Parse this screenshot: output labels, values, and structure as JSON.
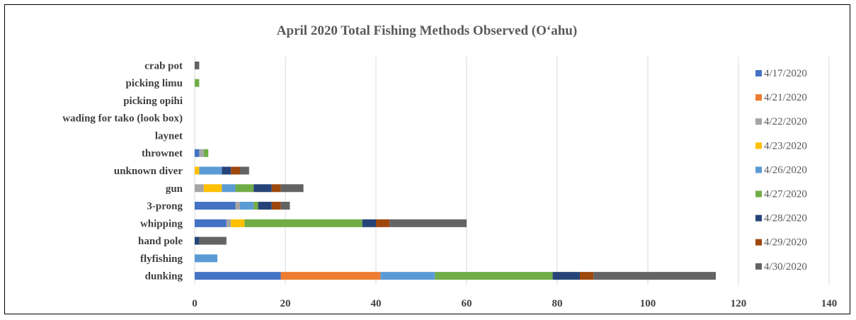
{
  "chart_data": {
    "type": "bar",
    "orientation": "horizontal",
    "stacked": true,
    "title": "April 2020 Total Fishing Methods Observed (O‘ahu)",
    "xlabel": "",
    "ylabel": "",
    "xlim": [
      0,
      140
    ],
    "xticks": [
      0,
      20,
      40,
      60,
      80,
      100,
      120,
      140
    ],
    "grid": true,
    "legend_position": "right",
    "categories": [
      "dunking",
      "flyfishing",
      "hand pole",
      "whipping",
      "3-prong",
      "gun",
      "unknown diver",
      "thrownet",
      "laynet",
      "wading for tako (look box)",
      "picking opihi",
      "picking limu",
      "crab pot"
    ],
    "series": [
      {
        "name": "4/17/2020",
        "color": "#4472C4",
        "values": [
          19,
          0,
          0,
          7,
          9,
          0,
          0,
          1,
          0,
          0,
          0,
          0,
          0
        ]
      },
      {
        "name": "4/21/2020",
        "color": "#ED7D31",
        "values": [
          22,
          0,
          0,
          0,
          0,
          0,
          0,
          0,
          0,
          0,
          0,
          0,
          0
        ]
      },
      {
        "name": "4/22/2020",
        "color": "#A5A5A5",
        "values": [
          0,
          0,
          0,
          1,
          1,
          2,
          0,
          1,
          0,
          0,
          0,
          0,
          0
        ]
      },
      {
        "name": "4/23/2020",
        "color": "#FFC000",
        "values": [
          0,
          0,
          0,
          3,
          0,
          4,
          1,
          0,
          0,
          0,
          0,
          0,
          0
        ]
      },
      {
        "name": "4/26/2020",
        "color": "#5B9BD5",
        "values": [
          12,
          5,
          0,
          0,
          3,
          3,
          5,
          0,
          0,
          0,
          0,
          0,
          0
        ]
      },
      {
        "name": "4/27/2020",
        "color": "#70AD47",
        "values": [
          26,
          0,
          0,
          26,
          1,
          4,
          0,
          1,
          0,
          0,
          0,
          1,
          0
        ]
      },
      {
        "name": "4/28/2020",
        "color": "#264478",
        "values": [
          6,
          0,
          1,
          3,
          3,
          4,
          2,
          0,
          0,
          0,
          0,
          0,
          0
        ]
      },
      {
        "name": "4/29/2020",
        "color": "#9E480E",
        "values": [
          3,
          0,
          0,
          3,
          2,
          2,
          2,
          0,
          0,
          0,
          0,
          0,
          0
        ]
      },
      {
        "name": "4/30/2020",
        "color": "#636363",
        "values": [
          27,
          0,
          6,
          17,
          2,
          5,
          2,
          0,
          0,
          0,
          0,
          0,
          1
        ]
      }
    ]
  }
}
